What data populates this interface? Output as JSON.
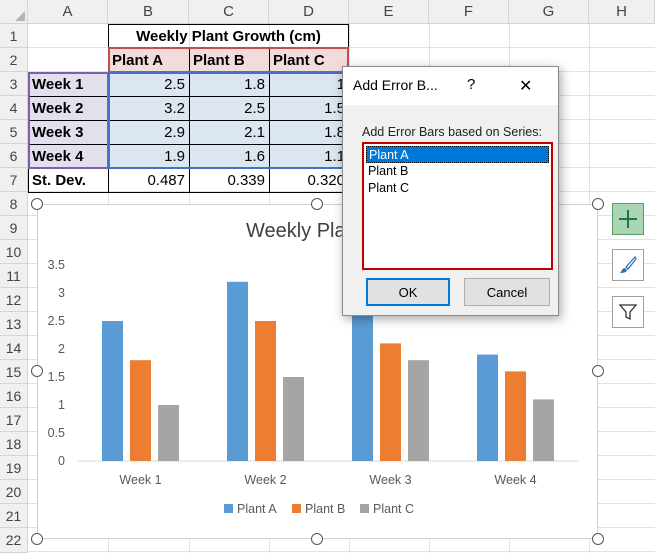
{
  "columns": [
    "A",
    "B",
    "C",
    "D",
    "E",
    "F",
    "G",
    "H"
  ],
  "rows": [
    "1",
    "2",
    "3",
    "4",
    "5",
    "6",
    "7",
    "8",
    "9",
    "10",
    "11",
    "12",
    "13",
    "14",
    "15",
    "16",
    "17",
    "18",
    "19",
    "20",
    "21",
    "22"
  ],
  "sheet": {
    "title": "Weekly Plant Growth (cm)",
    "headers": [
      "Plant A",
      "Plant B",
      "Plant C"
    ],
    "data": [
      {
        "label": "Week 1",
        "a": "2.5",
        "b": "1.8",
        "c": "1"
      },
      {
        "label": "Week 2",
        "a": "3.2",
        "b": "2.5",
        "c": "1.5"
      },
      {
        "label": "Week 3",
        "a": "2.9",
        "b": "2.1",
        "c": "1.8"
      },
      {
        "label": "Week 4",
        "a": "1.9",
        "b": "1.6",
        "c": "1.1"
      }
    ],
    "stdev": {
      "label": "St. Dev.",
      "a": "0.487",
      "b": "0.339",
      "c": "0.320"
    }
  },
  "chart_data": {
    "type": "bar",
    "title": "Weekly Plant Gr",
    "categories": [
      "Week 1",
      "Week 2",
      "Week 3",
      "Week 4"
    ],
    "series": [
      {
        "name": "Plant A",
        "values": [
          2.5,
          3.2,
          2.9,
          1.9
        ],
        "color": "#5b9bd5"
      },
      {
        "name": "Plant B",
        "values": [
          1.8,
          2.5,
          2.1,
          1.6
        ],
        "color": "#ed7d31"
      },
      {
        "name": "Plant C",
        "values": [
          1.0,
          1.5,
          1.8,
          1.1
        ],
        "color": "#a5a5a5"
      }
    ],
    "yticks": [
      "0",
      "0.5",
      "1",
      "1.5",
      "2",
      "2.5",
      "3",
      "3.5"
    ],
    "ylim": [
      0,
      3.5
    ],
    "legend": "bottom",
    "grid": false
  },
  "dialog": {
    "title": "Add Error B...",
    "help": "?",
    "close": "✕",
    "prompt": "Add Error Bars based on Series:",
    "options": [
      "Plant A",
      "Plant B",
      "Plant C"
    ],
    "selected": "Plant A",
    "ok": "OK",
    "cancel": "Cancel"
  },
  "chart_tools": {
    "elements_icon": "plus-icon",
    "styles_icon": "brush-icon",
    "filter_icon": "funnel-icon",
    "accent": "#217346"
  }
}
